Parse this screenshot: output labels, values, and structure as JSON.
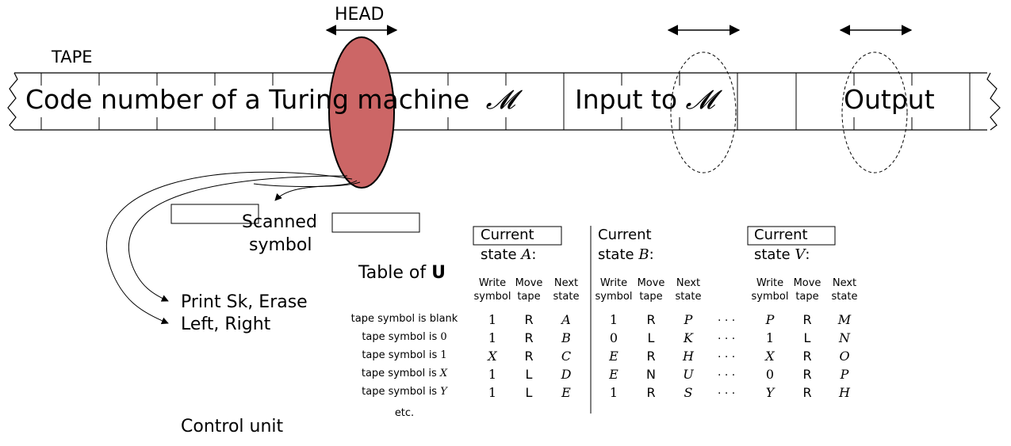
{
  "labels": {
    "head": "HEAD",
    "tape": "TAPE",
    "tape_text_1": "Code number of a Turing machine",
    "tape_symbol_M": "𝓜",
    "tape_text_2": "Input to",
    "tape_text_3": "Output",
    "scanned_1": "Scanned",
    "scanned_2": "symbol",
    "print_line": "Print Sk, Erase",
    "move_line": "Left, Right",
    "control_unit": "Control unit",
    "table_of": "Table of",
    "table_U": "U",
    "current": "Current",
    "ellipsis": "· · ·"
  },
  "states": [
    {
      "prefix": "state",
      "name": "A",
      "suffix": ":"
    },
    {
      "prefix": "state",
      "name": "B",
      "suffix": ":"
    },
    {
      "prefix": "state",
      "name": "V",
      "suffix": ":"
    }
  ],
  "col_headers": {
    "write": [
      "Write",
      "symbol"
    ],
    "move": [
      "Move",
      "tape"
    ],
    "next": [
      "Next",
      "state"
    ]
  },
  "row_labels": [
    {
      "text": "tape symbol is blank",
      "sym": ""
    },
    {
      "text": "tape symbol is",
      "sym": "0"
    },
    {
      "text": "tape symbol is",
      "sym": "1"
    },
    {
      "text": "tape symbol is",
      "sym": "X"
    },
    {
      "text": "tape symbol is",
      "sym": "Y"
    },
    {
      "text": "etc.",
      "sym": ""
    }
  ],
  "table": {
    "A": [
      [
        "1",
        "R",
        "A"
      ],
      [
        "1",
        "R",
        "B"
      ],
      [
        "X",
        "R",
        "C"
      ],
      [
        "1",
        "L",
        "D"
      ],
      [
        "1",
        "L",
        "E"
      ]
    ],
    "B": [
      [
        "1",
        "R",
        "P"
      ],
      [
        "0",
        "L",
        "K"
      ],
      [
        "E",
        "R",
        "H"
      ],
      [
        "E",
        "N",
        "U"
      ],
      [
        "1",
        "R",
        "S"
      ]
    ],
    "V": [
      [
        "P",
        "R",
        "M"
      ],
      [
        "1",
        "L",
        "N"
      ],
      [
        "X",
        "R",
        "O"
      ],
      [
        "0",
        "R",
        "P"
      ],
      [
        "Y",
        "R",
        "H"
      ]
    ]
  },
  "colors": {
    "head_fill": "#cc6666",
    "line": "#000000"
  }
}
